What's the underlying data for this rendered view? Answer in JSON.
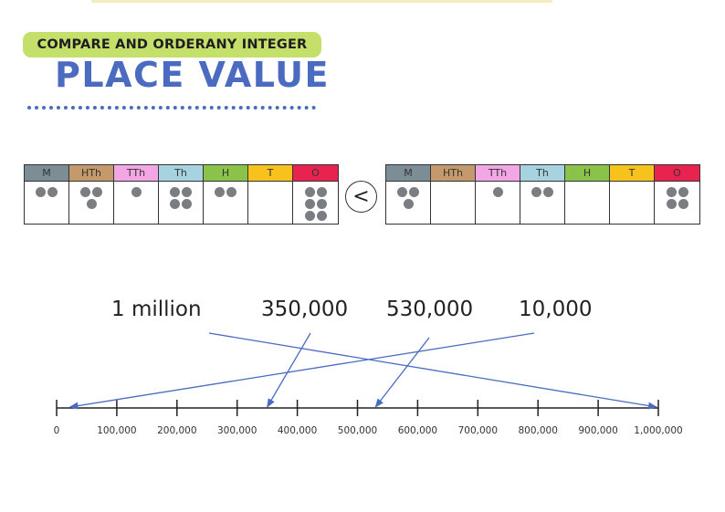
{
  "header": {
    "subtitle": "COMPARE AND ORDERANY INTEGER",
    "title": "PLACE VALUE"
  },
  "comparison": {
    "symbol": "<",
    "left_table": {
      "columns": [
        {
          "label": "M",
          "color": "#7c8d95",
          "dots": 2
        },
        {
          "label": "HTh",
          "color": "#c49a6c",
          "dots": 3
        },
        {
          "label": "TTh",
          "color": "#f3a6e4",
          "dots": 1
        },
        {
          "label": "Th",
          "color": "#a7d3e0",
          "dots": 4
        },
        {
          "label": "H",
          "color": "#8bc34a",
          "dots": 2
        },
        {
          "label": "T",
          "color": "#f7c21b",
          "dots": 0
        },
        {
          "label": "O",
          "color": "#e8234f",
          "dots": 6
        }
      ]
    },
    "right_table": {
      "columns": [
        {
          "label": "M",
          "color": "#7c8d95",
          "dots": 3
        },
        {
          "label": "HTh",
          "color": "#c49a6c",
          "dots": 0
        },
        {
          "label": "TTh",
          "color": "#f3a6e4",
          "dots": 1
        },
        {
          "label": "Th",
          "color": "#a7d3e0",
          "dots": 2
        },
        {
          "label": "H",
          "color": "#8bc34a",
          "dots": 0
        },
        {
          "label": "T",
          "color": "#f7c21b",
          "dots": 0
        },
        {
          "label": "O",
          "color": "#e8234f",
          "dots": 4
        }
      ]
    }
  },
  "number_line": {
    "ticks": [
      "0",
      "100,000",
      "200,000",
      "300,000",
      "400,000",
      "500,000",
      "600,000",
      "700,000",
      "800,000",
      "900,000",
      "1,000,000"
    ],
    "labels": [
      {
        "text": "1 million",
        "value": 1000000
      },
      {
        "text": "350,000",
        "value": 350000
      },
      {
        "text": "530,000",
        "value": 530000
      },
      {
        "text": "10,000",
        "value": 10000
      }
    ],
    "arrow_color": "#4a6bc0"
  }
}
